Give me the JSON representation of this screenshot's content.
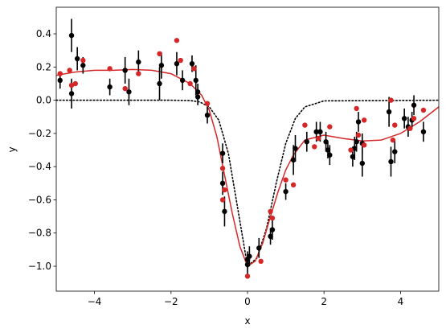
{
  "chart_data": {
    "type": "scatter",
    "title": "",
    "xlabel": "x",
    "ylabel": "y",
    "xlim": [
      -5,
      5
    ],
    "ylim": [
      -1.15,
      0.56
    ],
    "x_ticks": [
      -4,
      -2,
      0,
      2,
      4
    ],
    "x_tick_labels": [
      "−4",
      "−2",
      "0",
      "2",
      "4"
    ],
    "y_ticks": [
      -1.0,
      -0.8,
      -0.6,
      -0.4,
      -0.2,
      0.0,
      0.2,
      0.4
    ],
    "y_tick_labels": [
      "−1.0",
      "−0.8",
      "−0.6",
      "−0.4",
      "−0.2",
      "0.0",
      "0.2",
      "0.4"
    ],
    "grid": false,
    "legend": "none",
    "colors": {
      "fit": "#d62728",
      "model": "#000000",
      "data": "#000000",
      "predicted": "#d62728"
    },
    "fit_curve": {
      "style": "solid",
      "color": "#d62728",
      "x": [
        -5.0,
        -4.5,
        -4.0,
        -3.5,
        -3.0,
        -2.5,
        -2.0,
        -1.5,
        -1.2,
        -1.0,
        -0.8,
        -0.6,
        -0.4,
        -0.2,
        0.0,
        0.2,
        0.4,
        0.6,
        0.8,
        1.0,
        1.2,
        1.5,
        2.0,
        2.5,
        3.0,
        3.5,
        4.0,
        4.5,
        5.0
      ],
      "y": [
        0.15,
        0.17,
        0.18,
        0.18,
        0.185,
        0.18,
        0.16,
        0.1,
        0.03,
        -0.06,
        -0.22,
        -0.45,
        -0.68,
        -0.88,
        -1.0,
        -0.97,
        -0.86,
        -0.7,
        -0.55,
        -0.42,
        -0.33,
        -0.24,
        -0.21,
        -0.23,
        -0.245,
        -0.24,
        -0.2,
        -0.13,
        -0.04
      ]
    },
    "model_curve": {
      "style": "dotted",
      "color": "#000000",
      "x": [
        -5.0,
        -2.0,
        -1.5,
        -1.25,
        -1.0,
        -0.75,
        -0.5,
        -0.25,
        0.0,
        0.25,
        0.5,
        0.75,
        1.0,
        1.25,
        1.5,
        2.0,
        5.0
      ],
      "y": [
        0.0,
        0.0,
        -0.002,
        -0.01,
        -0.04,
        -0.12,
        -0.32,
        -0.66,
        -1.0,
        -0.95,
        -0.77,
        -0.5,
        -0.26,
        -0.11,
        -0.04,
        -0.004,
        0.0
      ]
    },
    "observations": [
      {
        "x": -4.9,
        "y": 0.12,
        "err": 0.05
      },
      {
        "x": -4.6,
        "y": 0.39,
        "err": 0.1
      },
      {
        "x": -4.6,
        "y": 0.04,
        "err": 0.09
      },
      {
        "x": -4.45,
        "y": 0.25,
        "err": 0.07
      },
      {
        "x": -4.3,
        "y": 0.21,
        "err": 0.05
      },
      {
        "x": -3.6,
        "y": 0.08,
        "err": 0.05
      },
      {
        "x": -3.2,
        "y": 0.18,
        "err": 0.08
      },
      {
        "x": -3.1,
        "y": 0.05,
        "err": 0.08
      },
      {
        "x": -2.85,
        "y": 0.23,
        "err": 0.07
      },
      {
        "x": -2.3,
        "y": 0.1,
        "err": 0.1
      },
      {
        "x": -2.25,
        "y": 0.21,
        "err": 0.08
      },
      {
        "x": -1.85,
        "y": 0.22,
        "err": 0.07
      },
      {
        "x": -1.7,
        "y": 0.12,
        "err": 0.06
      },
      {
        "x": -1.45,
        "y": 0.22,
        "err": 0.05
      },
      {
        "x": -1.35,
        "y": 0.12,
        "err": 0.09
      },
      {
        "x": -1.3,
        "y": 0.05,
        "err": 0.05
      },
      {
        "x": -1.3,
        "y": 0.02,
        "err": 0.05
      },
      {
        "x": -1.05,
        "y": -0.09,
        "err": 0.05
      },
      {
        "x": -0.65,
        "y": -0.32,
        "err": 0.06
      },
      {
        "x": -0.65,
        "y": -0.5,
        "err": 0.07
      },
      {
        "x": -0.6,
        "y": -0.67,
        "err": 0.09
      },
      {
        "x": 0.0,
        "y": -0.96,
        "err": 0.05
      },
      {
        "x": 0.0,
        "y": -0.99,
        "err": 0.06
      },
      {
        "x": 0.05,
        "y": -0.94,
        "err": 0.06
      },
      {
        "x": 0.3,
        "y": -0.89,
        "err": 0.06
      },
      {
        "x": 0.6,
        "y": -0.82,
        "err": 0.05
      },
      {
        "x": 0.65,
        "y": -0.78,
        "err": 0.06
      },
      {
        "x": 1.0,
        "y": -0.55,
        "err": 0.05
      },
      {
        "x": 1.2,
        "y": -0.36,
        "err": 0.09
      },
      {
        "x": 1.25,
        "y": -0.29,
        "err": 0.08
      },
      {
        "x": 1.55,
        "y": -0.25,
        "err": 0.06
      },
      {
        "x": 1.8,
        "y": -0.19,
        "err": 0.06
      },
      {
        "x": 1.9,
        "y": -0.19,
        "err": 0.06
      },
      {
        "x": 2.05,
        "y": -0.25,
        "err": 0.06
      },
      {
        "x": 2.1,
        "y": -0.3,
        "err": 0.05
      },
      {
        "x": 2.15,
        "y": -0.33,
        "err": 0.06
      },
      {
        "x": 2.75,
        "y": -0.34,
        "err": 0.06
      },
      {
        "x": 2.8,
        "y": -0.29,
        "err": 0.07
      },
      {
        "x": 2.85,
        "y": -0.25,
        "err": 0.06
      },
      {
        "x": 2.9,
        "y": -0.13,
        "err": 0.06
      },
      {
        "x": 3.0,
        "y": -0.26,
        "err": 0.06
      },
      {
        "x": 3.0,
        "y": -0.38,
        "err": 0.08
      },
      {
        "x": 3.7,
        "y": -0.07,
        "err": 0.09
      },
      {
        "x": 3.75,
        "y": -0.37,
        "err": 0.09
      },
      {
        "x": 3.85,
        "y": -0.31,
        "err": 0.07
      },
      {
        "x": 4.1,
        "y": -0.11,
        "err": 0.06
      },
      {
        "x": 4.2,
        "y": -0.16,
        "err": 0.06
      },
      {
        "x": 4.3,
        "y": -0.12,
        "err": 0.05
      },
      {
        "x": 4.35,
        "y": -0.03,
        "err": 0.06
      },
      {
        "x": 4.6,
        "y": -0.19,
        "err": 0.06
      }
    ],
    "predicted_points": [
      {
        "x": -4.9,
        "y": 0.16
      },
      {
        "x": -4.65,
        "y": 0.18
      },
      {
        "x": -4.6,
        "y": 0.09
      },
      {
        "x": -4.5,
        "y": 0.1
      },
      {
        "x": -4.3,
        "y": 0.24
      },
      {
        "x": -3.6,
        "y": 0.19
      },
      {
        "x": -3.2,
        "y": 0.07
      },
      {
        "x": -2.85,
        "y": 0.16
      },
      {
        "x": -2.3,
        "y": 0.28
      },
      {
        "x": -1.85,
        "y": 0.36
      },
      {
        "x": -1.75,
        "y": 0.24
      },
      {
        "x": -1.5,
        "y": 0.1
      },
      {
        "x": -1.4,
        "y": 0.19
      },
      {
        "x": -1.05,
        "y": -0.02
      },
      {
        "x": -0.65,
        "y": -0.41
      },
      {
        "x": -0.65,
        "y": -0.6
      },
      {
        "x": -0.6,
        "y": -0.54
      },
      {
        "x": 0.0,
        "y": -1.06
      },
      {
        "x": 0.35,
        "y": -0.97
      },
      {
        "x": 0.6,
        "y": -0.67
      },
      {
        "x": 0.65,
        "y": -0.71
      },
      {
        "x": 1.0,
        "y": -0.48
      },
      {
        "x": 1.2,
        "y": -0.51
      },
      {
        "x": 1.5,
        "y": -0.15
      },
      {
        "x": 1.75,
        "y": -0.28
      },
      {
        "x": 1.85,
        "y": -0.23
      },
      {
        "x": 2.15,
        "y": -0.16
      },
      {
        "x": 2.7,
        "y": -0.3
      },
      {
        "x": 2.85,
        "y": -0.05
      },
      {
        "x": 2.9,
        "y": -0.21
      },
      {
        "x": 3.05,
        "y": -0.12
      },
      {
        "x": 3.05,
        "y": -0.27
      },
      {
        "x": 3.75,
        "y": 0.0
      },
      {
        "x": 3.8,
        "y": -0.24
      },
      {
        "x": 3.85,
        "y": -0.15
      },
      {
        "x": 4.25,
        "y": -0.17
      },
      {
        "x": 4.35,
        "y": -0.11
      },
      {
        "x": 4.6,
        "y": -0.06
      }
    ]
  }
}
